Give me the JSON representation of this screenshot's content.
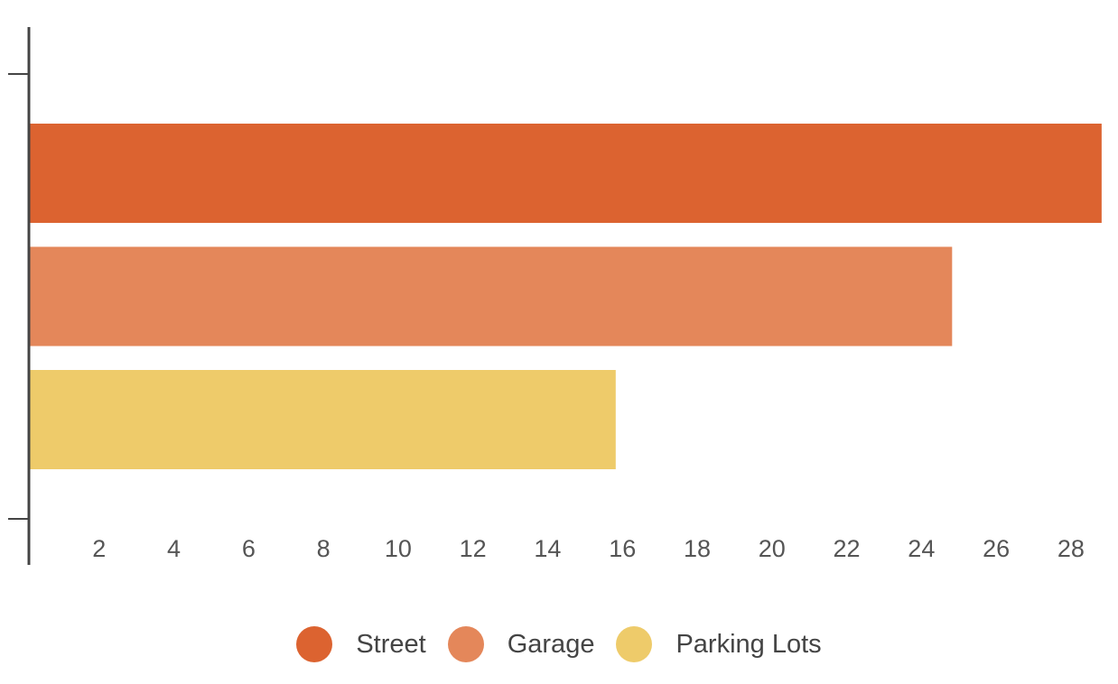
{
  "chart_data": {
    "type": "bar",
    "orientation": "horizontal",
    "series": [
      {
        "name": "Street",
        "value": 28.7,
        "color": "#dc6330"
      },
      {
        "name": "Garage",
        "value": 24.7,
        "color": "#e4875a"
      },
      {
        "name": "Parking Lots",
        "value": 15.7,
        "color": "#eecb6a"
      }
    ],
    "xlim": [
      0,
      28.8
    ],
    "x_ticks": [
      "2",
      "4",
      "6",
      "8",
      "10",
      "12",
      "14",
      "16",
      "18",
      "20",
      "22",
      "24",
      "26",
      "28"
    ],
    "grid": false,
    "legend": "bottom"
  }
}
